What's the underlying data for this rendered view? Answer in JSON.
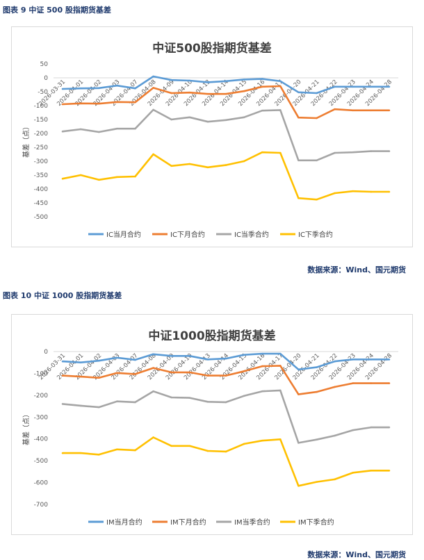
{
  "figure1": {
    "caption": "图表 9  中证 500 股指期货基差",
    "source": "数据来源：Wind、国元期货"
  },
  "figure2": {
    "caption": "图表 10  中证 1000 股指期货基差",
    "source": "数据来源：Wind、国元期货"
  },
  "colors": {
    "month_current": "#5b9bd5",
    "month_next": "#ed7d31",
    "quarter_current": "#a5a5a5",
    "quarter_next": "#ffc000"
  },
  "chart_data": [
    {
      "type": "line",
      "title": "中证500股指期货基差",
      "ylabel": "基差（点）",
      "xlabel": "",
      "ylim": [
        -500,
        50
      ],
      "yticks": [
        50,
        0,
        -50,
        -100,
        -150,
        -200,
        -250,
        -300,
        -350,
        -400,
        -450,
        -500
      ],
      "grid": false,
      "legend": "bottom",
      "categories": [
        "2026-03-31",
        "2026-04-01",
        "2026-04-02",
        "2026-04-03",
        "2026-04-07",
        "2026-04-08",
        "2026-04-09",
        "2026-04-10",
        "2026-04-13",
        "2026-04-14",
        "2026-04-15",
        "2026-04-16",
        "2026-04-17",
        "2026-04-20",
        "2026-04-21",
        "2026-04-22",
        "2026-04-23",
        "2026-04-24",
        "2026-04-28"
      ],
      "series": [
        {
          "name": "IC当月合约",
          "color": "#5b9bd5",
          "values": [
            -40,
            -38,
            -37,
            -28,
            -38,
            5,
            -8,
            -10,
            -16,
            -12,
            -6,
            -4,
            -12,
            -52,
            -55,
            -32,
            -32,
            -32,
            -32
          ]
        },
        {
          "name": "IC下月合约",
          "color": "#ed7d31",
          "values": [
            -95,
            -92,
            -93,
            -87,
            -88,
            -36,
            -55,
            -53,
            -58,
            -58,
            -48,
            -32,
            -30,
            -143,
            -145,
            -113,
            -117,
            -117,
            -117
          ]
        },
        {
          "name": "IC当季合约",
          "color": "#a5a5a5",
          "values": [
            -193,
            -185,
            -195,
            -183,
            -183,
            -115,
            -150,
            -142,
            -158,
            -152,
            -142,
            -118,
            -116,
            -297,
            -297,
            -270,
            -268,
            -264,
            -264
          ]
        },
        {
          "name": "IC下季合约",
          "color": "#ffc000",
          "values": [
            -363,
            -350,
            -367,
            -357,
            -355,
            -275,
            -317,
            -310,
            -322,
            -314,
            -300,
            -268,
            -270,
            -433,
            -438,
            -415,
            -408,
            -410,
            -410
          ]
        }
      ]
    },
    {
      "type": "line",
      "title": "中证1000股指期货基差",
      "ylabel": "基差（点）",
      "xlabel": "",
      "ylim": [
        -700,
        0
      ],
      "yticks": [
        0,
        -100,
        -200,
        -300,
        -400,
        -500,
        -600,
        -700
      ],
      "grid": false,
      "legend": "bottom",
      "categories": [
        "2026-03-31",
        "2026-04-01",
        "2026-04-02",
        "2026-04-03",
        "2026-04-07",
        "2026-04-08",
        "2026-04-09",
        "2026-04-10",
        "2026-04-13",
        "2026-04-14",
        "2026-04-15",
        "2026-04-16",
        "2026-04-17",
        "2026-04-20",
        "2026-04-21",
        "2026-04-22",
        "2026-04-23",
        "2026-04-24",
        "2026-04-28"
      ],
      "series": [
        {
          "name": "IM当月合约",
          "color": "#5b9bd5",
          "values": [
            -45,
            -50,
            -42,
            -28,
            -38,
            -12,
            -20,
            -20,
            -36,
            -32,
            -15,
            -10,
            -10,
            -82,
            -72,
            -45,
            -36,
            -36,
            -36
          ]
        },
        {
          "name": "IM下月合约",
          "color": "#ed7d31",
          "values": [
            -110,
            -115,
            -120,
            -98,
            -103,
            -75,
            -95,
            -95,
            -110,
            -110,
            -90,
            -67,
            -65,
            -196,
            -185,
            -162,
            -145,
            -145,
            -145
          ]
        },
        {
          "name": "IM当季合约",
          "color": "#a5a5a5",
          "values": [
            -240,
            -248,
            -255,
            -228,
            -232,
            -182,
            -210,
            -212,
            -230,
            -232,
            -203,
            -182,
            -178,
            -418,
            -403,
            -385,
            -360,
            -347,
            -347
          ]
        },
        {
          "name": "IM下季合约",
          "color": "#ffc000",
          "values": [
            -465,
            -465,
            -472,
            -448,
            -452,
            -393,
            -432,
            -432,
            -455,
            -458,
            -423,
            -408,
            -402,
            -615,
            -597,
            -585,
            -555,
            -545,
            -545
          ]
        }
      ]
    }
  ]
}
